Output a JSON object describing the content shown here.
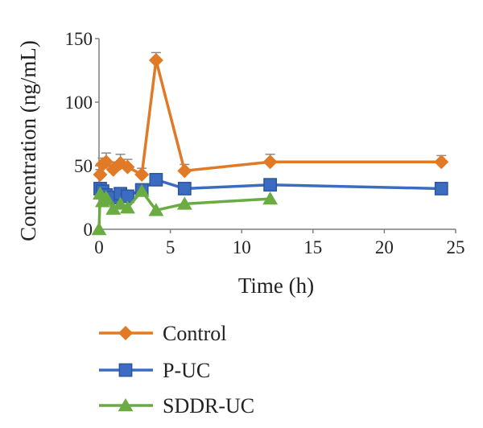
{
  "chart_data": {
    "type": "line",
    "xlabel": "Time (h)",
    "ylabel": "Concentration (ng/mL)",
    "xlim": [
      0,
      25
    ],
    "ylim": [
      0,
      150
    ],
    "x_ticks": [
      0,
      5,
      10,
      15,
      20,
      25
    ],
    "y_ticks": [
      0,
      50,
      100,
      150
    ],
    "grid": false,
    "legend_position": "bottom",
    "series": [
      {
        "name": "Control",
        "color": "#e07a26",
        "marker": "diamond",
        "x": [
          0.083,
          0.25,
          0.5,
          1,
          1.5,
          2,
          3,
          4,
          6,
          12,
          24
        ],
        "y": [
          43,
          51,
          53,
          47,
          52,
          49,
          43,
          133,
          46,
          53,
          53
        ],
        "error": [
          4,
          5,
          7,
          6,
          7,
          6,
          5,
          6,
          5,
          6,
          5
        ]
      },
      {
        "name": "P-UC",
        "color": "#3b6cc1",
        "marker": "square",
        "x": [
          0.083,
          0.25,
          0.5,
          1,
          1.5,
          2,
          3,
          4,
          6,
          12,
          24
        ],
        "y": [
          32,
          30,
          27,
          25,
          28,
          26,
          31,
          39,
          32,
          35,
          32
        ],
        "error": [
          0,
          0,
          0,
          0,
          0,
          0,
          0,
          0,
          0,
          0,
          0
        ]
      },
      {
        "name": "SDDR-UC",
        "color": "#6aab42",
        "marker": "triangle",
        "x": [
          0,
          0.083,
          0.25,
          0.5,
          1,
          1.5,
          2,
          3,
          4,
          6,
          12
        ],
        "y": [
          0,
          28,
          22,
          25,
          16,
          20,
          17,
          30,
          15,
          20,
          24
        ],
        "error": [
          0,
          0,
          0,
          0,
          0,
          0,
          0,
          0,
          0,
          0,
          0
        ]
      }
    ]
  }
}
